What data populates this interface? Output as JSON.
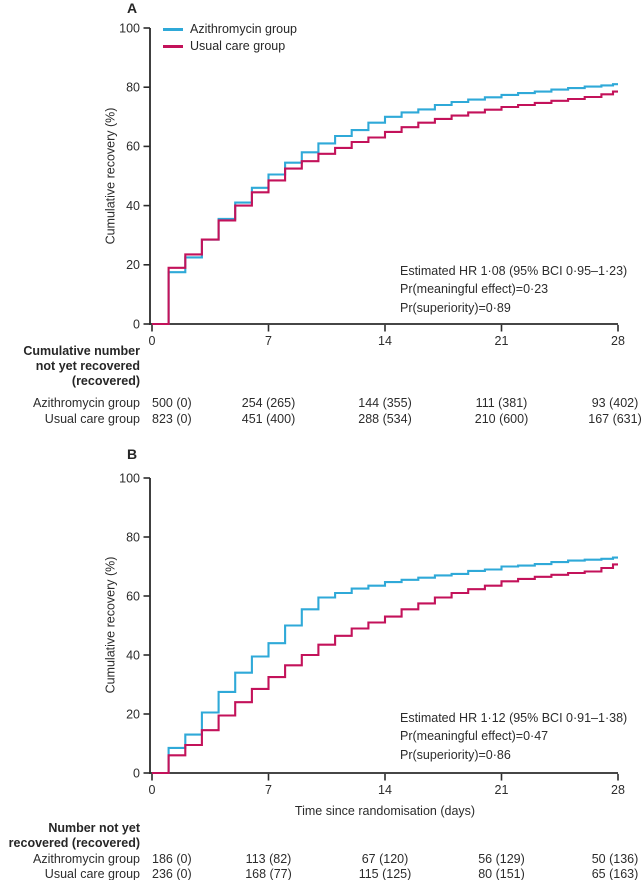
{
  "figure": {
    "kind": "cumulative recovery step curves with risk tables",
    "text_color": "#272727",
    "axis_color": "#2b2b2b"
  },
  "legend": [
    {
      "label": "Azithromycin group",
      "color": "#2fa9d8"
    },
    {
      "label": "Usual care group",
      "color": "#c3125a"
    }
  ],
  "chart_data": [
    {
      "type": "line",
      "subtype": "step-after-survival",
      "panel": "A",
      "xlabel": "",
      "ylabel": "Cumulative recovery (%)",
      "xlim": [
        0,
        28
      ],
      "ylim": [
        0,
        100
      ],
      "xticks": [
        0,
        7,
        14,
        21,
        28
      ],
      "yticks": [
        0,
        20,
        40,
        60,
        80,
        100
      ],
      "grid": false,
      "legend_position": "top-left-inside",
      "x_days": [
        0,
        1,
        2,
        3,
        4,
        5,
        6,
        7,
        8,
        9,
        10,
        11,
        12,
        13,
        14,
        15,
        16,
        17,
        18,
        19,
        20,
        21,
        22,
        23,
        24,
        25,
        26,
        27,
        28
      ],
      "series": [
        {
          "name": "Azithromycin group",
          "color": "#2fa9d8",
          "values": [
            0,
            17.5,
            22.5,
            28.5,
            35.5,
            41,
            46,
            50.5,
            54.5,
            58,
            61,
            63.5,
            65.5,
            68,
            70,
            71.5,
            72.5,
            74,
            75,
            75.8,
            76.6,
            77.4,
            78,
            78.5,
            79.2,
            79.7,
            80.2,
            80.6,
            81
          ]
        },
        {
          "name": "Usual care group",
          "color": "#c3125a",
          "values": [
            0,
            19,
            23.5,
            28.5,
            35,
            40,
            44.5,
            48.5,
            52.5,
            55,
            57.5,
            59.5,
            61.5,
            63,
            64.9,
            66.5,
            68,
            69.3,
            70.4,
            71.5,
            72.4,
            73.3,
            74,
            74.7,
            75.4,
            76,
            76.7,
            77.6,
            78.5
          ]
        }
      ],
      "annotation": [
        "Estimated HR 1·08 (95% BCI 0·95–1·23)",
        "Pr(meaningful effect)=0·23",
        "Pr(superiority)=0·89"
      ]
    },
    {
      "type": "line",
      "subtype": "step-after-survival",
      "panel": "B",
      "xlabel": "Time since randomisation (days)",
      "ylabel": "Cumulative recovery (%)",
      "xlim": [
        0,
        28
      ],
      "ylim": [
        0,
        100
      ],
      "xticks": [
        0,
        7,
        14,
        21,
        28
      ],
      "yticks": [
        0,
        20,
        40,
        60,
        80,
        100
      ],
      "grid": false,
      "legend_position": "none",
      "x_days": [
        0,
        1,
        2,
        3,
        4,
        5,
        6,
        7,
        8,
        9,
        10,
        11,
        12,
        13,
        14,
        15,
        16,
        17,
        18,
        19,
        20,
        21,
        22,
        23,
        24,
        25,
        26,
        27,
        28
      ],
      "series": [
        {
          "name": "Azithromycin group",
          "color": "#2fa9d8",
          "values": [
            0,
            8.5,
            13,
            20.5,
            27.5,
            34,
            39.5,
            44,
            50,
            55.5,
            59.5,
            61,
            62.5,
            63.5,
            64.7,
            65.5,
            66.2,
            67,
            67.5,
            68.5,
            69,
            70,
            70.3,
            70.8,
            71.5,
            72,
            72.3,
            72.6,
            73
          ]
        },
        {
          "name": "Usual care group",
          "color": "#c3125a",
          "values": [
            0,
            6,
            9.5,
            14.5,
            19.5,
            24,
            28.5,
            32.5,
            36.5,
            40,
            43.5,
            46.5,
            49,
            51,
            53,
            55.5,
            57.5,
            59.5,
            61,
            62.3,
            63.5,
            65,
            65.8,
            66.5,
            67.2,
            67.8,
            68.3,
            69.5,
            70.7
          ]
        }
      ],
      "annotation": [
        "Estimated HR 1·12 (95% BCI 0·91–1·38)",
        "Pr(meaningful effect)=0·47",
        "Pr(superiority)=0·86"
      ]
    }
  ],
  "risk_tables": [
    {
      "header": [
        "Cumulative number",
        "not yet recovered",
        "(recovered)"
      ],
      "rows": [
        {
          "label": "Azithromycin group",
          "values": [
            "500 (0)",
            "254 (265)",
            "144 (355)",
            "111 (381)",
            "93 (402)"
          ]
        },
        {
          "label": "Usual care group",
          "values": [
            "823 (0)",
            "451 (400)",
            "288 (534)",
            "210 (600)",
            "167 (631)"
          ]
        }
      ]
    },
    {
      "header": [
        "Number not yet",
        "recovered (recovered)"
      ],
      "rows": [
        {
          "label": "Azithromycin group",
          "values": [
            "186 (0)",
            "113 (82)",
            "67 (120)",
            "56 (129)",
            "50 (136)"
          ]
        },
        {
          "label": "Usual care group",
          "values": [
            "236 (0)",
            "168 (77)",
            "115 (125)",
            "80 (151)",
            "65 (163)"
          ]
        }
      ]
    }
  ]
}
